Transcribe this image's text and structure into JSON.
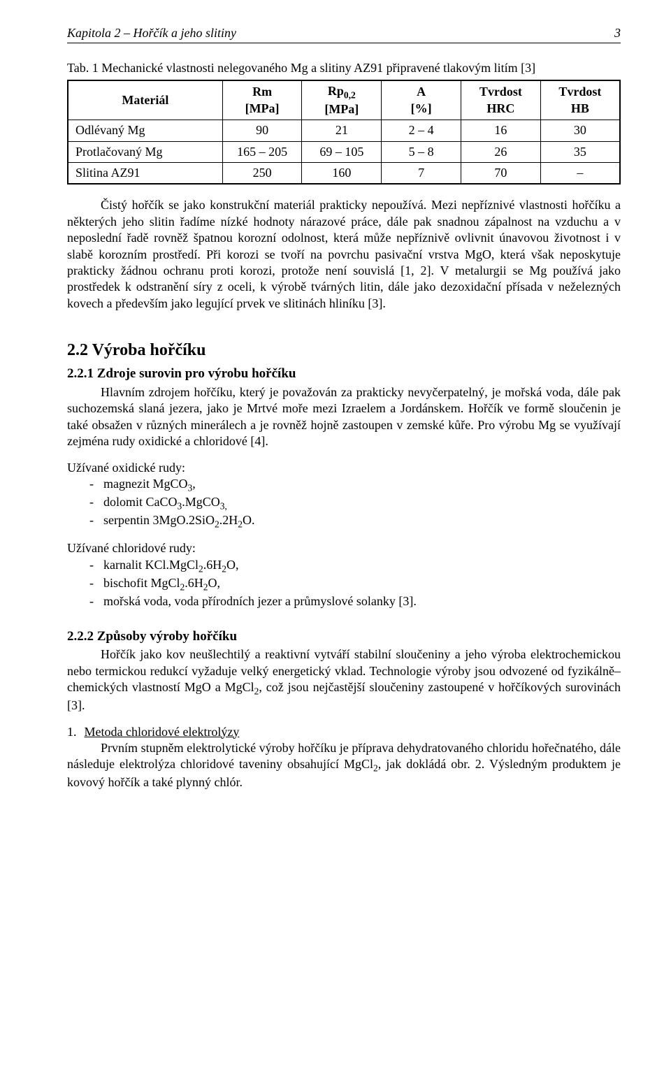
{
  "header": {
    "chapter": "Kapitola 2 – Hořčík a jeho slitiny",
    "page_number": "3"
  },
  "table": {
    "caption": "Tab. 1 Mechanické vlastnosti nelegovaného Mg a slitiny AZ91 připravené tlakovým litím [3]",
    "columns": [
      {
        "line1": "Materiál",
        "line2": ""
      },
      {
        "line1": "Rm",
        "line2": "[MPa]"
      },
      {
        "line1": "Rp",
        "sub": "0,2",
        "line2": "[MPa]"
      },
      {
        "line1": "A",
        "line2": "[%]"
      },
      {
        "line1": "Tvrdost",
        "line2": "HRC"
      },
      {
        "line1": "Tvrdost",
        "line2": "HB"
      }
    ],
    "rows": [
      [
        "Odlévaný Mg",
        "90",
        "21",
        "2 – 4",
        "16",
        "30"
      ],
      [
        "Protlačovaný Mg",
        "165 – 205",
        "69 – 105",
        "5 – 8",
        "26",
        "35"
      ],
      [
        "Slitina AZ91",
        "250",
        "160",
        "7",
        "70",
        "–"
      ]
    ]
  },
  "paragraphs": {
    "p1": "Čistý hořčík se jako konstrukční materiál prakticky nepoužívá. Mezi nepříznivé vlastnosti hořčíku a některých jeho slitin řadíme nízké hodnoty nárazové práce, dále pak snadnou zápalnost na vzduchu a v neposlední řadě rovněž špatnou korozní odolnost, která může nepříznivě ovlivnit únavovou životnost i v slabě korozním prostředí. Při korozi se tvoří na povrchu pasivační vrstva MgO, která však neposkytuje prakticky žádnou ochranu proti korozi, protože není souvislá [1, 2]. V metalurgii se Mg používá jako prostředek k odstranění síry z oceli, k výrobě tvárných litin, dále jako dezoxidační přísada v neželezných kovech a především jako legující prvek ve slitinách hliníku [3].",
    "p2": "Hlavním zdrojem hořčíku, který je považován za prakticky nevyčerpatelný, je mořská voda, dále pak suchozemská slaná jezera, jako je Mrtvé moře mezi Izraelem a Jordánskem. Hořčík ve formě sloučenin je také obsažen v různých minerálech a je rovněž hojně zastoupen v zemské kůře. Pro výrobu Mg se využívají zejména rudy oxidické a chloridové [4].",
    "p3": "Hořčík jako kov neušlechtilý a reaktivní vytváří stabilní sloučeniny a jeho výroba elektrochemickou nebo termickou redukcí vyžaduje velký energetický vklad. Technologie výroby jsou odvozené od fyzikálně–chemických vlastností MgO a MgCl",
    "p3_tail": ", což jsou nejčastější sloučeniny zastoupené v hořčíkových surovinách [3].",
    "p4": "Prvním stupněm elektrolytické výroby hořčíku je příprava dehydratovaného chloridu hořečnatého, dále následuje elektrolýza chloridové taveniny obsahující MgCl",
    "p4_tail": ", jak dokládá obr. 2. Výsledným produktem je kovový hořčík a také plynný chlór."
  },
  "sections": {
    "s22": "2.2  Výroba hořčíku",
    "s221": "2.2.1   Zdroje surovin pro výrobu hořčíku",
    "s222": "2.2.2   Způsoby výroby hořčíku"
  },
  "lists": {
    "oxide_intro": "Užívané oxidické rudy:",
    "oxide_items": [
      {
        "pre": "magnezit MgCO",
        "sub": "3",
        "post": ","
      },
      {
        "pre": "dolomit CaCO",
        "sub": "3",
        "mid": ".MgCO",
        "sub2": "3,",
        "post": ""
      },
      {
        "pre": "serpentin 3MgO.2SiO",
        "sub": "2",
        "mid": ".2H",
        "sub2": "2",
        "post": "O."
      }
    ],
    "chloride_intro": "Užívané chloridové rudy:",
    "chloride_items": [
      {
        "pre": "karnalit KCl.MgCl",
        "sub": "2",
        "mid": ".6H",
        "sub2": "2",
        "post": "O,"
      },
      {
        "pre": "bischofit MgCl",
        "sub": "2",
        "mid": ".6H",
        "sub2": "2",
        "post": "O,"
      },
      {
        "pre": "mořská voda, voda přírodních jezer a průmyslové solanky [3].",
        "sub": "",
        "mid": "",
        "sub2": "",
        "post": ""
      }
    ]
  },
  "method": {
    "number": "1.",
    "title": "Metoda chloridové elektrolýzy"
  }
}
